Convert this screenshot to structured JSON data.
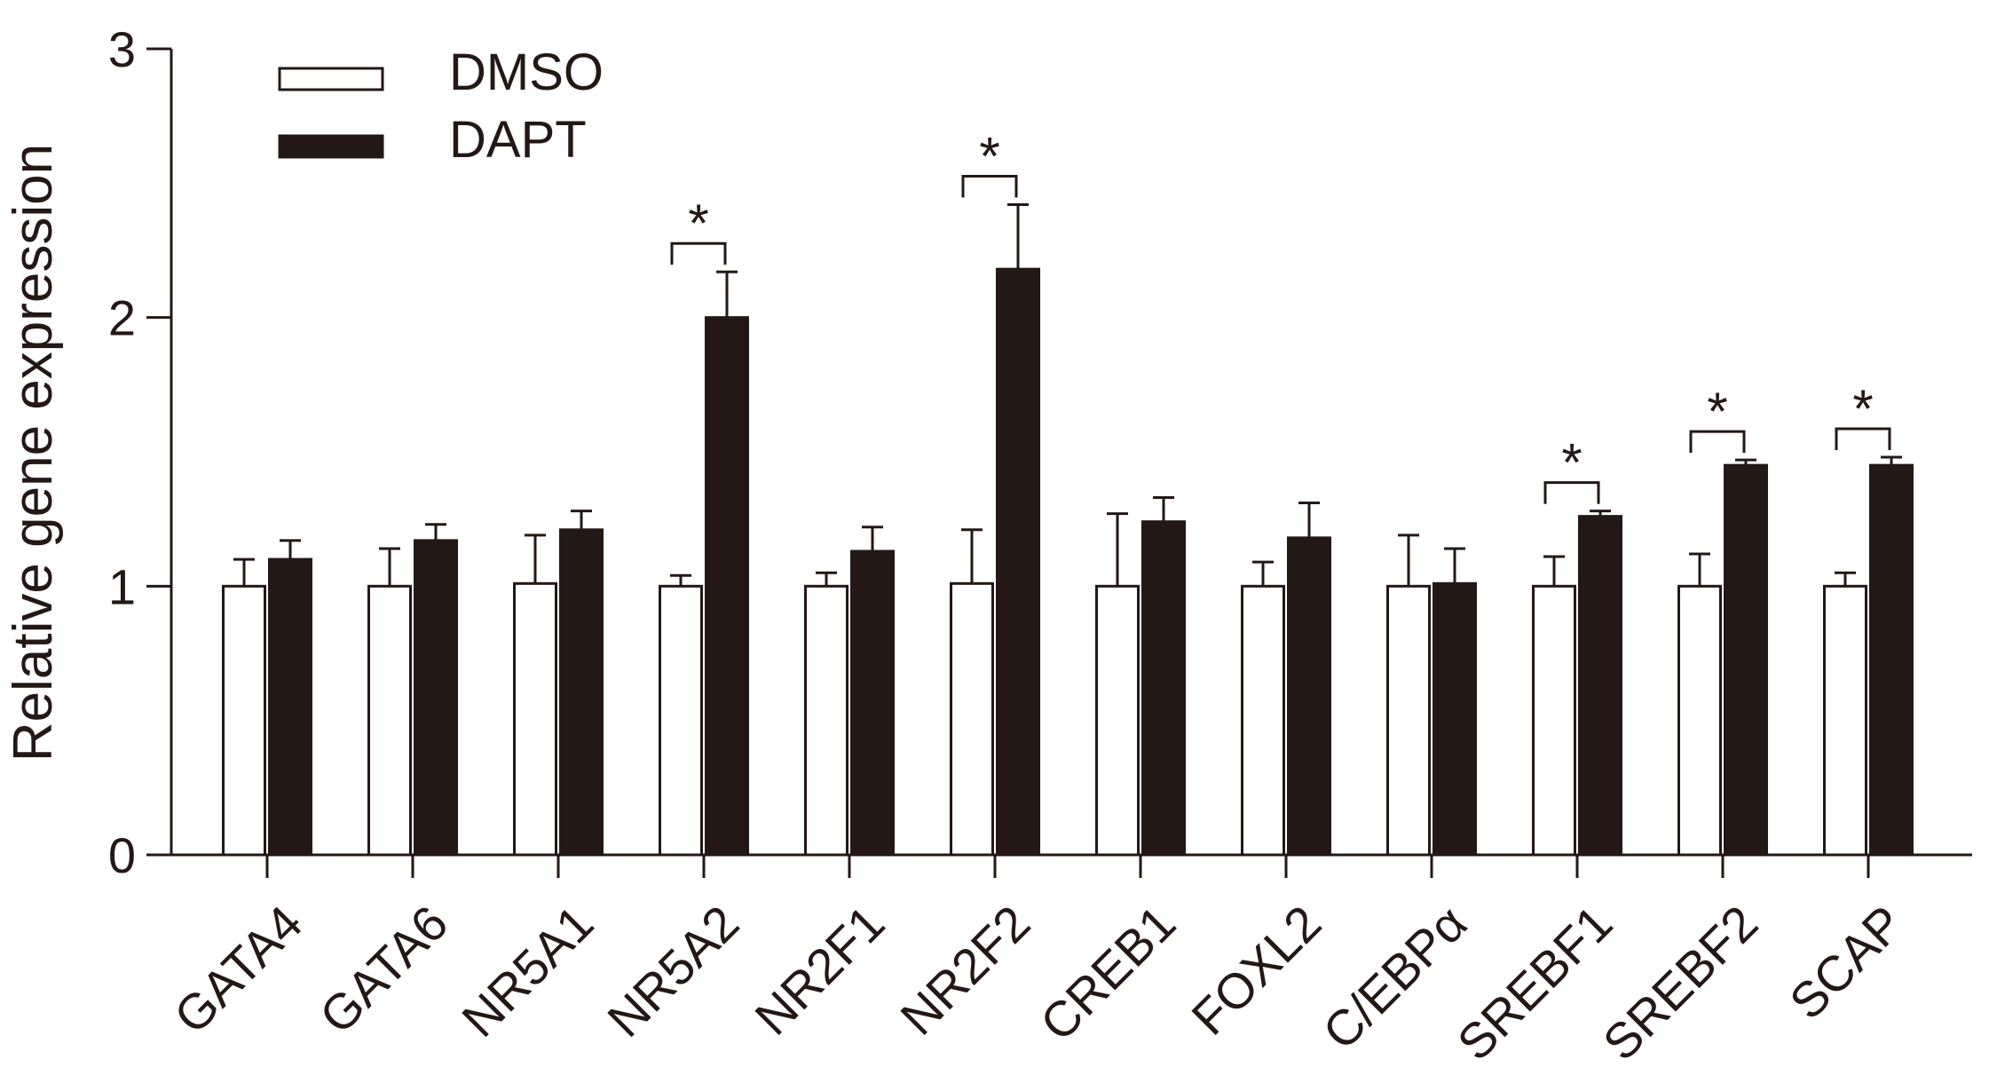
{
  "chart_data": {
    "type": "bar",
    "title": "",
    "xlabel": "",
    "ylabel": "Relative  gene expression",
    "ylim": [
      0,
      3
    ],
    "yticks": [
      0,
      1,
      2,
      3
    ],
    "grid": false,
    "legend_position": "top-left",
    "categories": [
      "GATA4",
      "GATA6",
      "NR5A1",
      "NR5A2",
      "NR2F1",
      "NR2F2",
      "CREB1",
      "FOXL2",
      "C/EBPα",
      "SREBF1",
      "SREBF2",
      "SCAP"
    ],
    "series": [
      {
        "name": "DMSO",
        "fill": "#ffffff",
        "values": [
          1.0,
          1.0,
          1.01,
          1.0,
          1.0,
          1.01,
          1.0,
          1.0,
          1.0,
          1.0,
          1.0,
          1.0
        ],
        "errors": [
          0.1,
          0.14,
          0.18,
          0.04,
          0.05,
          0.2,
          0.27,
          0.09,
          0.19,
          0.11,
          0.12,
          0.05
        ]
      },
      {
        "name": "DAPT",
        "fill": "#231815",
        "values": [
          1.1,
          1.17,
          1.21,
          2.0,
          1.13,
          2.18,
          1.24,
          1.18,
          1.01,
          1.26,
          1.45,
          1.45
        ],
        "errors": [
          0.07,
          0.06,
          0.07,
          0.17,
          0.09,
          0.24,
          0.09,
          0.13,
          0.13,
          0.02,
          0.02,
          0.03
        ]
      }
    ],
    "significance": [
      {
        "category": "NR5A2",
        "label": "*"
      },
      {
        "category": "NR2F2",
        "label": "*"
      },
      {
        "category": "SREBF1",
        "label": "*"
      },
      {
        "category": "SREBF2",
        "label": "*"
      },
      {
        "category": "SCAP",
        "label": "*"
      }
    ]
  }
}
